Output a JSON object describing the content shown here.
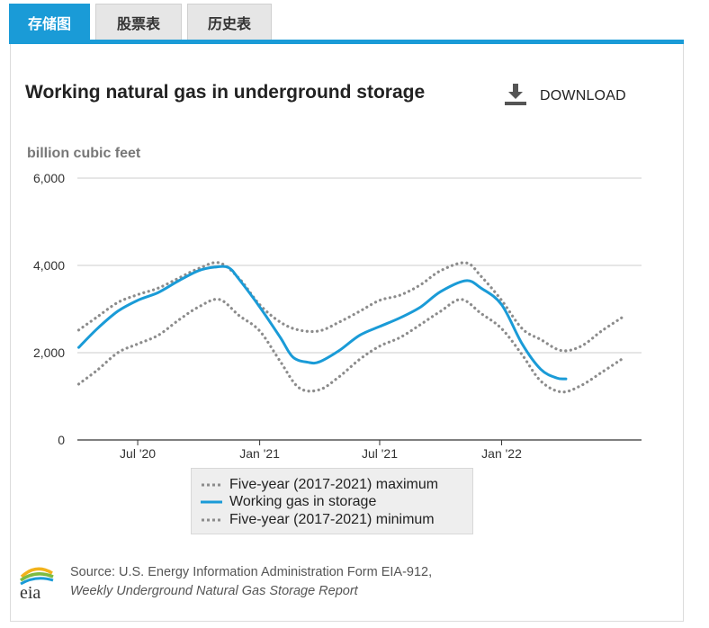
{
  "tabs": [
    {
      "label": "存储图",
      "active": true
    },
    {
      "label": "股票表",
      "active": false
    },
    {
      "label": "历史表",
      "active": false
    }
  ],
  "header": {
    "title": "Working natural gas in underground storage",
    "download_label": "DOWNLOAD",
    "download_icon": "download-icon"
  },
  "chart_data": {
    "type": "line",
    "ylabel": "billion cubic feet",
    "ylim": [
      0,
      6000
    ],
    "yticks": [
      0,
      2000,
      4000,
      6000
    ],
    "ytick_labels": [
      "0",
      "2,000",
      "4,000",
      "6,000"
    ],
    "xlim": [
      "2020-04-01",
      "2022-07-31"
    ],
    "xticks": [
      {
        "date": "2020-07-01",
        "label": "Jul '20"
      },
      {
        "date": "2021-01-01",
        "label": "Jan '21"
      },
      {
        "date": "2021-07-01",
        "label": "Jul '21"
      },
      {
        "date": "2022-01-01",
        "label": "Jan '22"
      }
    ],
    "grid": true,
    "legend_position": "bottom",
    "series": [
      {
        "name": "Five-year (2017-2021) maximum",
        "style": "dotted",
        "color": "#8c8c8c",
        "points": [
          [
            "2020-04-03",
            2520
          ],
          [
            "2020-05-01",
            2820
          ],
          [
            "2020-06-01",
            3150
          ],
          [
            "2020-07-01",
            3330
          ],
          [
            "2020-08-01",
            3480
          ],
          [
            "2020-09-01",
            3710
          ],
          [
            "2020-10-01",
            3930
          ],
          [
            "2020-11-01",
            4060
          ],
          [
            "2020-12-01",
            3700
          ],
          [
            "2021-01-01",
            3100
          ],
          [
            "2021-02-01",
            2700
          ],
          [
            "2021-03-01",
            2520
          ],
          [
            "2021-04-01",
            2500
          ],
          [
            "2021-05-01",
            2700
          ],
          [
            "2021-06-01",
            2950
          ],
          [
            "2021-07-01",
            3200
          ],
          [
            "2021-08-01",
            3320
          ],
          [
            "2021-09-01",
            3560
          ],
          [
            "2021-10-01",
            3880
          ],
          [
            "2021-11-08",
            4060
          ],
          [
            "2021-12-01",
            3750
          ],
          [
            "2022-01-01",
            3200
          ],
          [
            "2022-02-01",
            2550
          ],
          [
            "2022-03-01",
            2300
          ],
          [
            "2022-04-01",
            2050
          ],
          [
            "2022-05-01",
            2150
          ],
          [
            "2022-06-01",
            2500
          ],
          [
            "2022-07-01",
            2800
          ]
        ]
      },
      {
        "name": "Working gas in storage",
        "style": "solid",
        "color": "#1a9bd7",
        "points": [
          [
            "2020-04-03",
            2120
          ],
          [
            "2020-05-01",
            2550
          ],
          [
            "2020-06-01",
            2950
          ],
          [
            "2020-07-01",
            3200
          ],
          [
            "2020-08-01",
            3380
          ],
          [
            "2020-09-01",
            3650
          ],
          [
            "2020-10-01",
            3880
          ],
          [
            "2020-10-25",
            3960
          ],
          [
            "2020-11-15",
            3950
          ],
          [
            "2020-12-01",
            3680
          ],
          [
            "2021-01-01",
            3050
          ],
          [
            "2021-02-01",
            2350
          ],
          [
            "2021-02-20",
            1900
          ],
          [
            "2021-03-15",
            1780
          ],
          [
            "2021-04-01",
            1790
          ],
          [
            "2021-05-01",
            2050
          ],
          [
            "2021-06-01",
            2400
          ],
          [
            "2021-07-01",
            2600
          ],
          [
            "2021-08-01",
            2800
          ],
          [
            "2021-09-01",
            3050
          ],
          [
            "2021-10-01",
            3400
          ],
          [
            "2021-11-08",
            3650
          ],
          [
            "2021-12-01",
            3480
          ],
          [
            "2022-01-01",
            3100
          ],
          [
            "2022-02-01",
            2200
          ],
          [
            "2022-03-01",
            1620
          ],
          [
            "2022-03-25",
            1420
          ],
          [
            "2022-04-08",
            1400
          ]
        ]
      },
      {
        "name": "Five-year (2017-2021) minimum",
        "style": "dotted",
        "color": "#8c8c8c",
        "points": [
          [
            "2020-04-03",
            1280
          ],
          [
            "2020-05-01",
            1600
          ],
          [
            "2020-06-01",
            2000
          ],
          [
            "2020-07-01",
            2200
          ],
          [
            "2020-08-01",
            2400
          ],
          [
            "2020-09-01",
            2750
          ],
          [
            "2020-10-01",
            3050
          ],
          [
            "2020-11-01",
            3220
          ],
          [
            "2020-12-01",
            2850
          ],
          [
            "2021-01-01",
            2500
          ],
          [
            "2021-02-01",
            1800
          ],
          [
            "2021-03-01",
            1200
          ],
          [
            "2021-04-01",
            1150
          ],
          [
            "2021-05-01",
            1450
          ],
          [
            "2021-06-01",
            1850
          ],
          [
            "2021-07-01",
            2150
          ],
          [
            "2021-08-01",
            2350
          ],
          [
            "2021-09-01",
            2650
          ],
          [
            "2021-10-01",
            2950
          ],
          [
            "2021-11-01",
            3220
          ],
          [
            "2021-12-01",
            2900
          ],
          [
            "2022-01-01",
            2550
          ],
          [
            "2022-02-01",
            1950
          ],
          [
            "2022-03-01",
            1350
          ],
          [
            "2022-04-01",
            1100
          ],
          [
            "2022-05-01",
            1250
          ],
          [
            "2022-06-01",
            1550
          ],
          [
            "2022-07-01",
            1850
          ]
        ]
      }
    ]
  },
  "legend": {
    "items": [
      {
        "label": "Five-year (2017-2021) maximum",
        "style": "dotted",
        "color": "#8c8c8c"
      },
      {
        "label": "Working gas in storage",
        "style": "solid",
        "color": "#1a9bd7"
      },
      {
        "label": "Five-year (2017-2021) minimum",
        "style": "dotted",
        "color": "#8c8c8c"
      }
    ]
  },
  "source": {
    "line1": "Source: U.S. Energy Information Administration Form EIA-912,",
    "line2": "Weekly Underground Natural Gas Storage Report",
    "logo_text": "eia",
    "logo_icon": "eia-logo-icon"
  },
  "colors": {
    "accent": "#1a9bd7",
    "grid": "#cccccc",
    "bound": "#8c8c8c"
  }
}
